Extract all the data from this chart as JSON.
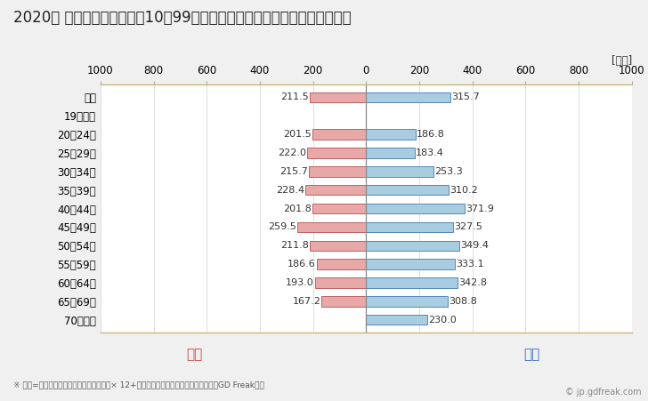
{
  "title": "2020年 民間企業（従業者数10〜99人）フルタイム労働者の男女別平均年収",
  "ylabel_unit": "[万円]",
  "footnote": "※ 年収=「きまって支給する現金給与額」× 12+「年間賞与その他特別給与額」としてGD Freak推計",
  "watermark": "© jp.gdfreak.com",
  "categories": [
    "全体",
    "19歳以下",
    "20〜24歳",
    "25〜29歳",
    "30〜34歳",
    "35〜39歳",
    "40〜44歳",
    "45〜49歳",
    "50〜54歳",
    "55〜59歳",
    "60〜64歳",
    "65〜69歳",
    "70歳以上"
  ],
  "female_values": [
    211.5,
    0,
    201.5,
    222.0,
    215.7,
    228.4,
    201.8,
    259.5,
    211.8,
    186.6,
    193.0,
    167.2,
    0
  ],
  "male_values": [
    315.7,
    0,
    186.8,
    183.4,
    253.3,
    310.2,
    371.9,
    327.5,
    349.4,
    333.1,
    342.8,
    308.8,
    230.0
  ],
  "female_color": "#e8a8a8",
  "male_color": "#a8cce0",
  "female_border_color": "#c06060",
  "male_border_color": "#5588bb",
  "female_label": "女性",
  "male_label": "男性",
  "female_label_color": "#cc4444",
  "male_label_color": "#3366bb",
  "xlim": [
    -1000,
    1000
  ],
  "xticks": [
    -1000,
    -800,
    -600,
    -400,
    -200,
    0,
    200,
    400,
    600,
    800,
    1000
  ],
  "xticklabels": [
    "1000",
    "800",
    "600",
    "400",
    "200",
    "0",
    "200",
    "400",
    "600",
    "800",
    "1000"
  ],
  "background_color": "#f0f0f0",
  "plot_bg_color": "#ffffff",
  "border_color": "#c8b878",
  "grid_color": "#dddddd",
  "title_fontsize": 12,
  "tick_fontsize": 8.5,
  "annotation_fontsize": 8,
  "legend_fontsize": 11,
  "footnote_fontsize": 6.5,
  "watermark_fontsize": 7,
  "bar_height": 0.55
}
